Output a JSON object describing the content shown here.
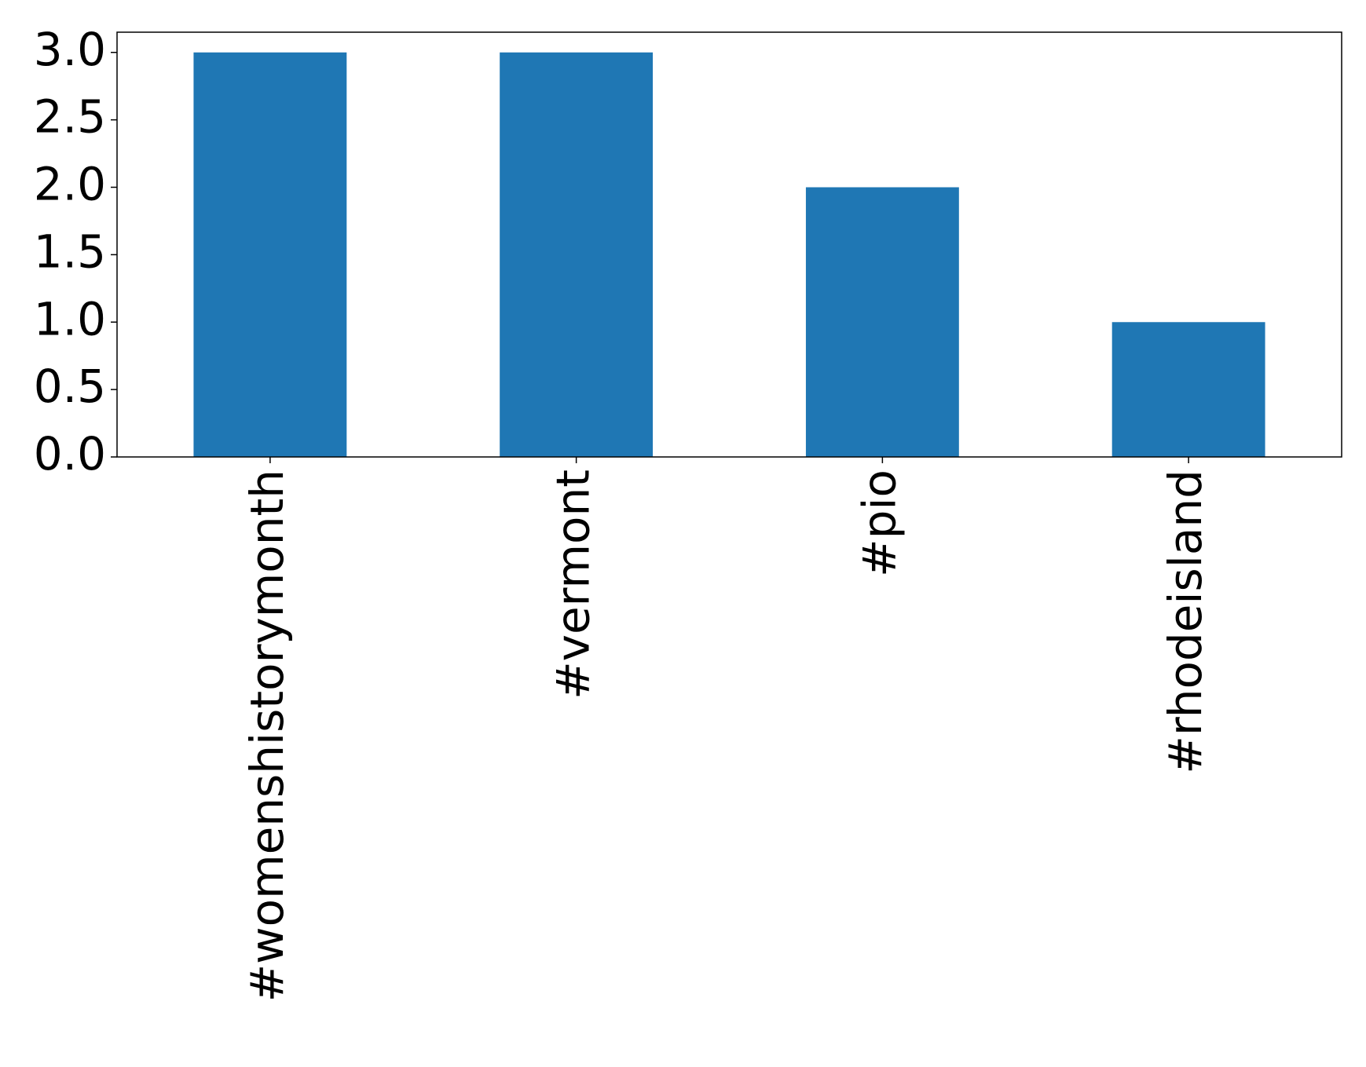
{
  "chart_data": {
    "type": "bar",
    "categories": [
      "#womenshistorymonth",
      "#vermont",
      "#pio",
      "#rhodeisland"
    ],
    "values": [
      3,
      3,
      2,
      1
    ],
    "color": "#1f77b4",
    "ylim": [
      0,
      3.15
    ],
    "yticks": [
      {
        "value": 0,
        "label": "0.0"
      },
      0.5,
      {
        "value": 1,
        "label": "1.0"
      },
      1.5,
      {
        "value": 2,
        "label": "2.0"
      },
      2.5,
      {
        "value": 3,
        "label": "3.0"
      }
    ],
    "grid": false
  }
}
